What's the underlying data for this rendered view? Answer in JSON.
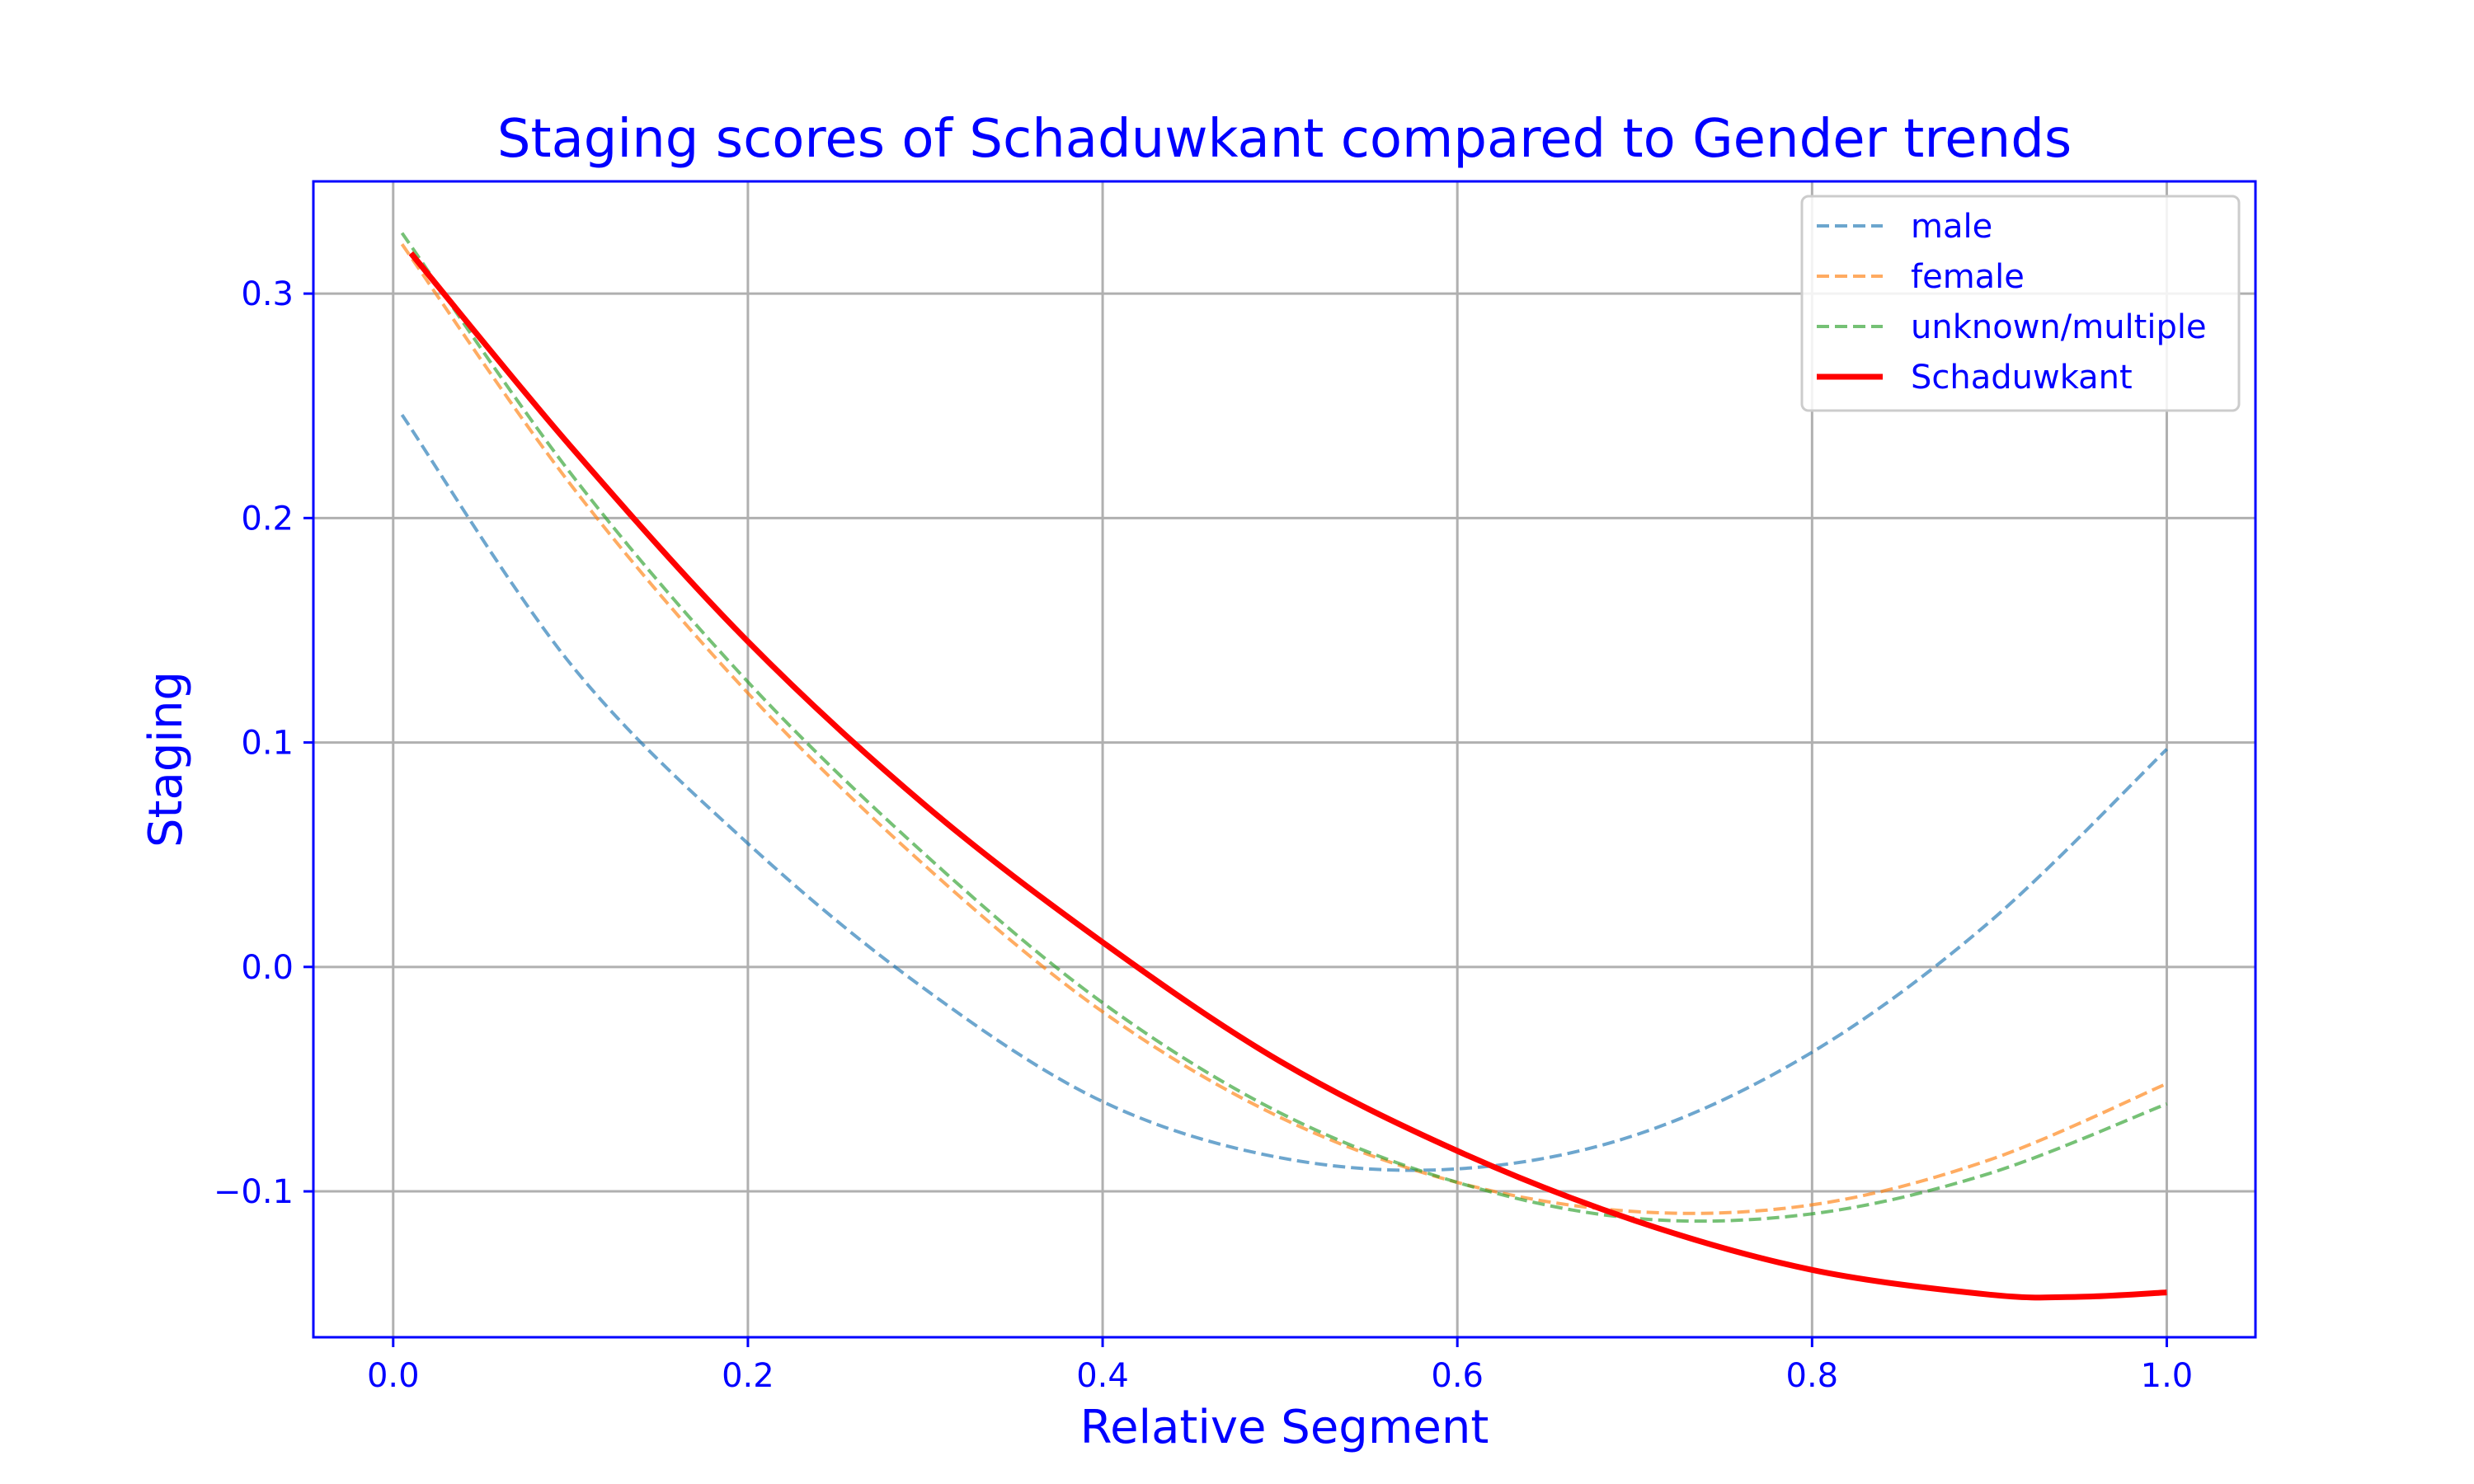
{
  "chart_data": {
    "type": "line",
    "title": "Staging scores of Schaduwkant compared to Gender trends",
    "xlabel": "Relative Segment",
    "ylabel": "Staging",
    "xlim": [
      -0.045,
      1.05
    ],
    "ylim": [
      -0.165,
      0.35
    ],
    "xticks": [
      0.0,
      0.2,
      0.4,
      0.6,
      0.8,
      1.0
    ],
    "xtick_labels": [
      "0.0",
      "0.2",
      "0.4",
      "0.6",
      "0.8",
      "1.0"
    ],
    "yticks": [
      -0.1,
      0.0,
      0.1,
      0.2,
      0.3
    ],
    "ytick_labels": [
      "−0.1",
      "0.0",
      "0.1",
      "0.2",
      "0.3"
    ],
    "grid": true,
    "legend_position": "top-right",
    "text_color": "#0000ff",
    "series": [
      {
        "name": "male",
        "style": "dashed",
        "color": "#1f77b4",
        "x": [
          0.005,
          0.1,
          0.2,
          0.3,
          0.4,
          0.5,
          0.6,
          0.7,
          0.8,
          0.9,
          1.0
        ],
        "y": [
          0.246,
          0.135,
          0.055,
          -0.01,
          -0.06,
          -0.085,
          -0.09,
          -0.075,
          -0.038,
          0.02,
          0.097
        ]
      },
      {
        "name": "female",
        "style": "dashed",
        "color": "#ff7f0e",
        "x": [
          0.005,
          0.1,
          0.2,
          0.3,
          0.4,
          0.5,
          0.6,
          0.7,
          0.8,
          0.9,
          1.0
        ],
        "y": [
          0.322,
          0.215,
          0.122,
          0.045,
          -0.02,
          -0.067,
          -0.096,
          -0.109,
          -0.106,
          -0.086,
          -0.052
        ]
      },
      {
        "name": "unknown/multiple",
        "style": "dashed",
        "color": "#2ca02c",
        "x": [
          0.005,
          0.1,
          0.2,
          0.3,
          0.4,
          0.5,
          0.6,
          0.7,
          0.8,
          0.9,
          1.0
        ],
        "y": [
          0.327,
          0.22,
          0.127,
          0.05,
          -0.016,
          -0.065,
          -0.096,
          -0.112,
          -0.11,
          -0.092,
          -0.061
        ]
      },
      {
        "name": "Schaduwkant",
        "style": "solid",
        "color": "#ff0000",
        "x": [
          0.01,
          0.1,
          0.2,
          0.3,
          0.4,
          0.5,
          0.6,
          0.7,
          0.8,
          0.9,
          0.95,
          1.0
        ],
        "y": [
          0.318,
          0.232,
          0.145,
          0.072,
          0.011,
          -0.042,
          -0.082,
          -0.113,
          -0.135,
          -0.146,
          -0.147,
          -0.145
        ]
      }
    ]
  }
}
